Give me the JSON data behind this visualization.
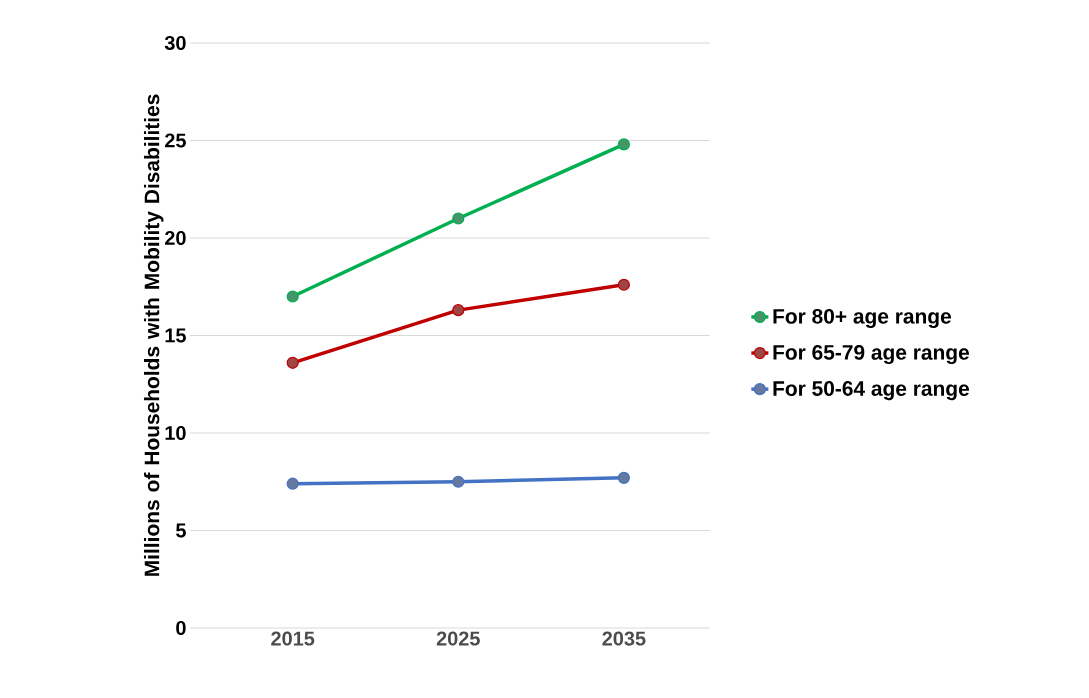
{
  "chart_data": {
    "type": "line",
    "ylabel": "Millions of Households with Mobility Disabilities",
    "categories": [
      "2015",
      "2025",
      "2035"
    ],
    "series": [
      {
        "name": "For 80+ age range",
        "color": "#00b050",
        "values": [
          17.0,
          21.0,
          24.8
        ]
      },
      {
        "name": "For 65-79 age range",
        "color": "#c00000",
        "values": [
          13.6,
          16.3,
          17.6
        ]
      },
      {
        "name": "For 50-64 age range",
        "color": "#4472c4",
        "values": [
          7.4,
          7.5,
          7.7
        ]
      }
    ],
    "ylim": [
      0,
      30
    ],
    "yticks": [
      0,
      5,
      10,
      15,
      20,
      25,
      30
    ],
    "grid": "y",
    "legend": "right",
    "marker": "circle",
    "line_style": "solid"
  }
}
